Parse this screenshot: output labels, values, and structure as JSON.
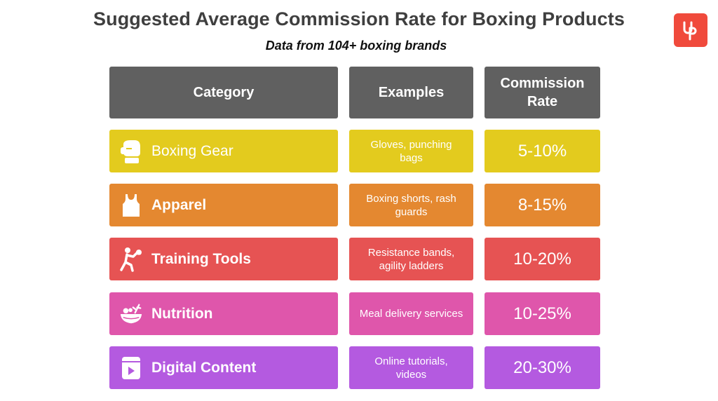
{
  "title": "Suggested Average Commission Rate for Boxing Products",
  "subtitle": "Data from 104+ boxing brands",
  "logo_icon": "up-logo-icon",
  "chart_data": {
    "type": "table",
    "columns": [
      "Category",
      "Examples",
      "Commission Rate"
    ],
    "rows": [
      {
        "category": "Boxing Gear",
        "examples": "Gloves, punching bags",
        "rate": "5-10%",
        "min": 5,
        "max": 10,
        "color": "#e3cb1e",
        "icon": "boxing-glove-icon"
      },
      {
        "category": "Apparel",
        "examples": "Boxing shorts, rash guards",
        "rate": "8-15%",
        "min": 8,
        "max": 15,
        "color": "#e48830",
        "icon": "tank-top-icon"
      },
      {
        "category": "Training Tools",
        "examples": "Resistance bands, agility ladders",
        "rate": "10-20%",
        "min": 10,
        "max": 20,
        "color": "#e65353",
        "icon": "boxer-figure-icon"
      },
      {
        "category": "Nutrition",
        "examples": "Meal delivery services",
        "rate": "10-25%",
        "min": 10,
        "max": 25,
        "color": "#df56ab",
        "icon": "salad-bowl-icon"
      },
      {
        "category": "Digital Content",
        "examples": "Online tutorials, videos",
        "rate": "20-30%",
        "min": 20,
        "max": 30,
        "color": "#b45ae0",
        "icon": "video-player-icon"
      }
    ],
    "header_color": "#606060"
  }
}
